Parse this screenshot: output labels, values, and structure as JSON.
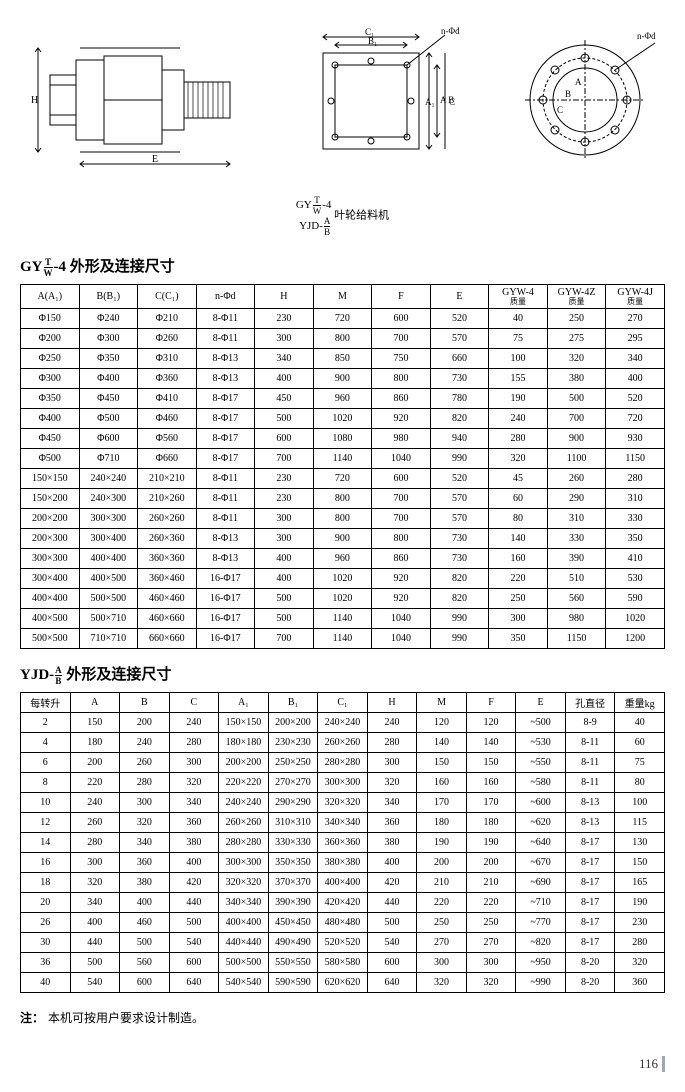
{
  "product_code_line1": "GY T/W -4",
  "product_code_line2": "YJD- A/B",
  "product_label": "叶轮给料机",
  "section1_title_pre": "GY",
  "section1_title_frac_top": "T",
  "section1_title_frac_bot": "W",
  "section1_title_post": "-4 外形及连接尺寸",
  "section2_title_pre": "YJD-",
  "section2_title_frac_top": "A",
  "section2_title_frac_bot": "B",
  "section2_title_post": " 外形及连接尺寸",
  "t1": {
    "columns": [
      "A(A₁)",
      "B(B₁)",
      "C(C₁)",
      "n-Φd",
      "H",
      "M",
      "F",
      "E",
      "GYW-4\n质量",
      "GYW-4Z\n质量",
      "GYW-4J\n质量"
    ],
    "rows": [
      [
        "Φ150",
        "Φ240",
        "Φ210",
        "8-Φ11",
        "230",
        "720",
        "600",
        "520",
        "40",
        "250",
        "270"
      ],
      [
        "Φ200",
        "Φ300",
        "Φ260",
        "8-Φ11",
        "300",
        "800",
        "700",
        "570",
        "75",
        "275",
        "295"
      ],
      [
        "Φ250",
        "Φ350",
        "Φ310",
        "8-Φ13",
        "340",
        "850",
        "750",
        "660",
        "100",
        "320",
        "340"
      ],
      [
        "Φ300",
        "Φ400",
        "Φ360",
        "8-Φ13",
        "400",
        "900",
        "800",
        "730",
        "155",
        "380",
        "400"
      ],
      [
        "Φ350",
        "Φ450",
        "Φ410",
        "8-Φ17",
        "450",
        "960",
        "860",
        "780",
        "190",
        "500",
        "520"
      ],
      [
        "Φ400",
        "Φ500",
        "Φ460",
        "8-Φ17",
        "500",
        "1020",
        "920",
        "820",
        "240",
        "700",
        "720"
      ],
      [
        "Φ450",
        "Φ600",
        "Φ560",
        "8-Φ17",
        "600",
        "1080",
        "980",
        "940",
        "280",
        "900",
        "930"
      ],
      [
        "Φ500",
        "Φ710",
        "Φ660",
        "8-Φ17",
        "700",
        "1140",
        "1040",
        "990",
        "320",
        "1100",
        "1150"
      ],
      [
        "150×150",
        "240×240",
        "210×210",
        "8-Φ11",
        "230",
        "720",
        "600",
        "520",
        "45",
        "260",
        "280"
      ],
      [
        "150×200",
        "240×300",
        "210×260",
        "8-Φ11",
        "230",
        "800",
        "700",
        "570",
        "60",
        "290",
        "310"
      ],
      [
        "200×200",
        "300×300",
        "260×260",
        "8-Φ11",
        "300",
        "800",
        "700",
        "570",
        "80",
        "310",
        "330"
      ],
      [
        "200×300",
        "300×400",
        "260×360",
        "8-Φ13",
        "300",
        "900",
        "800",
        "730",
        "140",
        "330",
        "350"
      ],
      [
        "300×300",
        "400×400",
        "360×360",
        "8-Φ13",
        "400",
        "960",
        "860",
        "730",
        "160",
        "390",
        "410"
      ],
      [
        "300×400",
        "400×500",
        "360×460",
        "16-Φ17",
        "400",
        "1020",
        "920",
        "820",
        "220",
        "510",
        "530"
      ],
      [
        "400×400",
        "500×500",
        "460×460",
        "16-Φ17",
        "500",
        "1020",
        "920",
        "820",
        "250",
        "560",
        "590"
      ],
      [
        "400×500",
        "500×710",
        "460×660",
        "16-Φ17",
        "500",
        "1140",
        "1040",
        "990",
        "300",
        "980",
        "1020"
      ],
      [
        "500×500",
        "710×710",
        "660×660",
        "16-Φ17",
        "700",
        "1140",
        "1040",
        "990",
        "350",
        "1150",
        "1200"
      ]
    ]
  },
  "t2": {
    "columns": [
      "每转升",
      "A",
      "B",
      "C",
      "A₁",
      "B₁",
      "C₁",
      "H",
      "M",
      "F",
      "E",
      "孔直径",
      "重量kg"
    ],
    "rows": [
      [
        "2",
        "150",
        "200",
        "240",
        "150×150",
        "200×200",
        "240×240",
        "240",
        "120",
        "120",
        "~500",
        "8-9",
        "40"
      ],
      [
        "4",
        "180",
        "240",
        "280",
        "180×180",
        "230×230",
        "260×260",
        "280",
        "140",
        "140",
        "~530",
        "8-11",
        "60"
      ],
      [
        "6",
        "200",
        "260",
        "300",
        "200×200",
        "250×250",
        "280×280",
        "300",
        "150",
        "150",
        "~550",
        "8-11",
        "75"
      ],
      [
        "8",
        "220",
        "280",
        "320",
        "220×220",
        "270×270",
        "300×300",
        "320",
        "160",
        "160",
        "~580",
        "8-11",
        "80"
      ],
      [
        "10",
        "240",
        "300",
        "340",
        "240×240",
        "290×290",
        "320×320",
        "340",
        "170",
        "170",
        "~600",
        "8-13",
        "100"
      ],
      [
        "12",
        "260",
        "320",
        "360",
        "260×260",
        "310×310",
        "340×340",
        "360",
        "180",
        "180",
        "~620",
        "8-13",
        "115"
      ],
      [
        "14",
        "280",
        "340",
        "380",
        "280×280",
        "330×330",
        "360×360",
        "380",
        "190",
        "190",
        "~640",
        "8-17",
        "130"
      ],
      [
        "16",
        "300",
        "360",
        "400",
        "300×300",
        "350×350",
        "380×380",
        "400",
        "200",
        "200",
        "~670",
        "8-17",
        "150"
      ],
      [
        "18",
        "320",
        "380",
        "420",
        "320×320",
        "370×370",
        "400×400",
        "420",
        "210",
        "210",
        "~690",
        "8-17",
        "165"
      ],
      [
        "20",
        "340",
        "400",
        "440",
        "340×340",
        "390×390",
        "420×420",
        "440",
        "220",
        "220",
        "~710",
        "8-17",
        "190"
      ],
      [
        "26",
        "400",
        "460",
        "500",
        "400×400",
        "450×450",
        "480×480",
        "500",
        "250",
        "250",
        "~770",
        "8-17",
        "230"
      ],
      [
        "30",
        "440",
        "500",
        "540",
        "440×440",
        "490×490",
        "520×520",
        "540",
        "270",
        "270",
        "~820",
        "8-17",
        "280"
      ],
      [
        "36",
        "500",
        "560",
        "600",
        "500×500",
        "550×550",
        "580×580",
        "600",
        "300",
        "300",
        "~950",
        "8-20",
        "320"
      ],
      [
        "40",
        "540",
        "600",
        "640",
        "540×540",
        "590×590",
        "620×620",
        "640",
        "320",
        "320",
        "~990",
        "8-20",
        "360"
      ]
    ]
  },
  "note_label": "注：",
  "note_text": "本机可按用户要求设计制造。",
  "page_number": "116"
}
